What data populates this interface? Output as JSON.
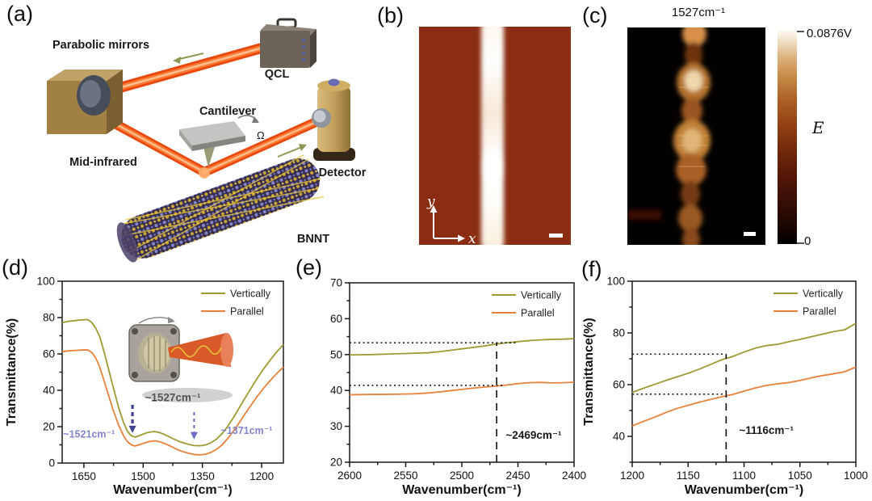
{
  "figure": {
    "panels": {
      "a": {
        "label": "(a)",
        "labels": {
          "parabolic_mirrors": "Parabolic mirrors",
          "qcl": "QCL",
          "cantilever": "Cantilever",
          "omega": "Ω",
          "mid_infrared": "Mid-infrared",
          "detector": "Detector",
          "bnnt": "BNNT"
        }
      },
      "b": {
        "label": "(b)",
        "axis_x": "x",
        "axis_y": "y"
      },
      "c": {
        "label": "(c)",
        "title": "1527cm⁻¹",
        "colorbar": {
          "max_label": "0.0876V",
          "symbol": "E",
          "min_label": "0",
          "colormap": [
            "#000000",
            "#6d2509",
            "#c78d49",
            "#fbf8f1"
          ]
        }
      },
      "d": {
        "label": "(d)"
      },
      "e": {
        "label": "(e)"
      },
      "f": {
        "label": "(f)"
      }
    }
  },
  "chart_data": [
    {
      "type": "line",
      "id": "d",
      "xlabel": "Wavenumber(cm⁻¹)",
      "ylabel": "Transmittance(%)",
      "xlim": [
        1705,
        1145
      ],
      "ylim": [
        0,
        100
      ],
      "x_reversed": true,
      "grid": false,
      "xticks": [
        1650,
        1500,
        1350,
        1200
      ],
      "yticks": [
        0,
        20,
        40,
        60,
        80,
        100
      ],
      "xminor_step": 75,
      "yminor_step": 10,
      "legend_position": "top-right",
      "series": [
        {
          "name": "Vertically",
          "color": "#9f9a33",
          "x": [
            1705,
            1690,
            1675,
            1660,
            1650,
            1640,
            1630,
            1620,
            1610,
            1600,
            1588,
            1575,
            1562,
            1550,
            1540,
            1530,
            1521,
            1510,
            1500,
            1490,
            1480,
            1470,
            1458,
            1445,
            1432,
            1420,
            1408,
            1395,
            1382,
            1371,
            1360,
            1350,
            1340,
            1328,
            1315,
            1300,
            1285,
            1270,
            1255,
            1240,
            1225,
            1210,
            1195,
            1180,
            1165,
            1150,
            1145
          ],
          "y": [
            77.2,
            77.9,
            78.3,
            78.6,
            78.8,
            78.9,
            77.3,
            74.2,
            69.5,
            62,
            52,
            41,
            30.5,
            22.5,
            17.5,
            15,
            14.3,
            15,
            15.9,
            16.7,
            17.1,
            17.3,
            16.7,
            15.6,
            14.2,
            12.9,
            11.8,
            10.9,
            10.1,
            9.6,
            9.5,
            9.6,
            10.1,
            11.2,
            13,
            16.2,
            20.5,
            25.5,
            31,
            36.5,
            41.8,
            47,
            51.8,
            56.2,
            60.3,
            64,
            65.2
          ]
        },
        {
          "name": "Parallel",
          "color": "#e8823a",
          "x": [
            1705,
            1690,
            1675,
            1660,
            1650,
            1640,
            1630,
            1620,
            1610,
            1600,
            1588,
            1575,
            1562,
            1550,
            1540,
            1530,
            1521,
            1510,
            1500,
            1490,
            1480,
            1470,
            1458,
            1445,
            1432,
            1420,
            1408,
            1395,
            1382,
            1371,
            1360,
            1350,
            1340,
            1328,
            1315,
            1300,
            1285,
            1270,
            1255,
            1240,
            1225,
            1210,
            1195,
            1180,
            1165,
            1150,
            1145
          ],
          "y": [
            61.2,
            61.7,
            61.9,
            62.1,
            62.2,
            62.2,
            60.8,
            57.8,
            52.8,
            46,
            37.5,
            28.5,
            20.8,
            15.2,
            11.8,
            10,
            9.4,
            10,
            10.8,
            11.5,
            12,
            12.2,
            11.7,
            10.7,
            9.4,
            8.1,
            6.9,
            6,
            5.2,
            4.7,
            4.5,
            4.6,
            5,
            5.9,
            7.4,
            10,
            13.7,
            18,
            22.8,
            27.7,
            32.4,
            37,
            41.2,
            45,
            48.5,
            51.7,
            52.8
          ]
        }
      ],
      "annotations": [
        {
          "type": "arrow",
          "x": 1527,
          "y1": 32,
          "y2": 16.5,
          "color": "#3d4291",
          "w": 3.2,
          "dash": "5,4"
        },
        {
          "type": "arrow",
          "x": 1371,
          "y1": 28,
          "y2": 13,
          "color": "#6a71c4",
          "w": 2,
          "dash": "4,4"
        },
        {
          "type": "text",
          "text": "~1527cm⁻¹",
          "x": 1425,
          "y": 34,
          "color": "#1a1a1a",
          "size": 13.5,
          "weight": 600
        },
        {
          "type": "text",
          "text": "~1521cm⁻¹",
          "x": 1637,
          "y": 14,
          "color": "#8084cc",
          "size": 12.5,
          "weight": 600
        },
        {
          "type": "text",
          "text": "~1371cm⁻¹",
          "x": 1238,
          "y": 16,
          "color": "#8084cc",
          "size": 12.5,
          "weight": 600
        }
      ]
    },
    {
      "type": "line",
      "id": "e",
      "xlabel": "Wavenumber(cm⁻¹)",
      "ylabel": "",
      "xlim": [
        2600,
        2400
      ],
      "ylim": [
        20,
        70
      ],
      "x_reversed": true,
      "grid": false,
      "xticks": [
        2600,
        2550,
        2500,
        2450,
        2400
      ],
      "yticks": [
        20,
        30,
        40,
        50,
        60,
        70
      ],
      "xminor_step": 25,
      "yminor_step": 5,
      "legend_position": "top-right",
      "series": [
        {
          "name": "Vertically",
          "color": "#9f9a33",
          "x": [
            2600,
            2590,
            2580,
            2570,
            2560,
            2550,
            2540,
            2530,
            2520,
            2510,
            2500,
            2490,
            2480,
            2470,
            2460,
            2450,
            2440,
            2430,
            2420,
            2410,
            2400
          ],
          "y": [
            49.9,
            49.95,
            50.0,
            50.1,
            50.2,
            50.3,
            50.4,
            50.5,
            50.8,
            51.2,
            51.6,
            52.0,
            52.4,
            52.9,
            53.3,
            53.6,
            53.9,
            54.1,
            54.25,
            54.3,
            54.45
          ]
        },
        {
          "name": "Parallel",
          "color": "#e8823a",
          "x": [
            2600,
            2590,
            2580,
            2570,
            2560,
            2550,
            2540,
            2530,
            2520,
            2510,
            2500,
            2490,
            2480,
            2470,
            2460,
            2450,
            2440,
            2430,
            2420,
            2410,
            2400
          ],
          "y": [
            38.8,
            38.85,
            38.9,
            38.9,
            38.95,
            39.0,
            39.1,
            39.3,
            39.6,
            39.95,
            40.3,
            40.65,
            40.95,
            41.2,
            41.5,
            41.9,
            42.15,
            42.25,
            42.1,
            42.15,
            42.3
          ]
        }
      ],
      "annotations": [
        {
          "type": "hline",
          "y": 53.3,
          "x1": 2600,
          "x2": 2452,
          "color": "#1a1a1a",
          "w": 1.6,
          "dash": "2,3.5"
        },
        {
          "type": "hline",
          "y": 41.4,
          "x1": 2600,
          "x2": 2462,
          "color": "#1a1a1a",
          "w": 1.6,
          "dash": "2,3.5"
        },
        {
          "type": "vline",
          "x": 2469,
          "y1": 20,
          "y2": 53.3,
          "color": "#1a1a1a",
          "w": 1.7,
          "dash": "9,7"
        },
        {
          "type": "text",
          "text": "~2469cm⁻¹",
          "x": 2436,
          "y": 26.5,
          "color": "#1a1a1a",
          "size": 13.5,
          "weight": 600
        }
      ]
    },
    {
      "type": "line",
      "id": "f",
      "xlabel": "Wavenumber(cm⁻¹)",
      "ylabel": "Transmittance(%)",
      "xlim": [
        1200,
        1000
      ],
      "ylim": [
        30,
        100
      ],
      "x_reversed": true,
      "grid": false,
      "xticks": [
        1200,
        1150,
        1100,
        1050,
        1000
      ],
      "yticks": [
        40,
        60,
        80,
        100
      ],
      "xminor_step": 25,
      "yminor_step": 10,
      "legend_position": "top-right",
      "series": [
        {
          "name": "Vertically",
          "color": "#9f9a33",
          "x": [
            1200,
            1190,
            1180,
            1170,
            1160,
            1150,
            1140,
            1130,
            1120,
            1110,
            1100,
            1090,
            1080,
            1070,
            1060,
            1050,
            1040,
            1030,
            1020,
            1010,
            1000
          ],
          "y": [
            57,
            58.6,
            60.1,
            61.6,
            63,
            64.4,
            66,
            67.8,
            69.6,
            70.9,
            72.6,
            74.1,
            75.1,
            75.6,
            76.6,
            77.5,
            78.5,
            79.5,
            80.5,
            81.2,
            83.7
          ]
        },
        {
          "name": "Parallel",
          "color": "#e8823a",
          "x": [
            1200,
            1190,
            1180,
            1170,
            1160,
            1150,
            1140,
            1130,
            1120,
            1110,
            1100,
            1090,
            1080,
            1070,
            1060,
            1050,
            1040,
            1030,
            1020,
            1010,
            1000
          ],
          "y": [
            44,
            45.8,
            47.4,
            49.2,
            50.8,
            52,
            53.2,
            54.3,
            55.3,
            56.2,
            57.5,
            58.7,
            59.7,
            60.3,
            60.8,
            61.6,
            62.6,
            63.5,
            64.2,
            65,
            66.8
          ]
        }
      ],
      "annotations": [
        {
          "type": "hline",
          "y": 71.8,
          "x1": 1200,
          "x2": 1116,
          "color": "#1a1a1a",
          "w": 1.6,
          "dash": "2,3.5"
        },
        {
          "type": "hline",
          "y": 56.3,
          "x1": 1200,
          "x2": 1116,
          "color": "#1a1a1a",
          "w": 1.6,
          "dash": "2,3.5"
        },
        {
          "type": "vline",
          "x": 1116,
          "y1": 30,
          "y2": 71.8,
          "color": "#1a1a1a",
          "w": 1.7,
          "dash": "9,7"
        },
        {
          "type": "text",
          "text": "~1116cm⁻¹",
          "x": 1080,
          "y": 41,
          "color": "#1a1a1a",
          "size": 13.5,
          "weight": 600
        }
      ]
    }
  ]
}
